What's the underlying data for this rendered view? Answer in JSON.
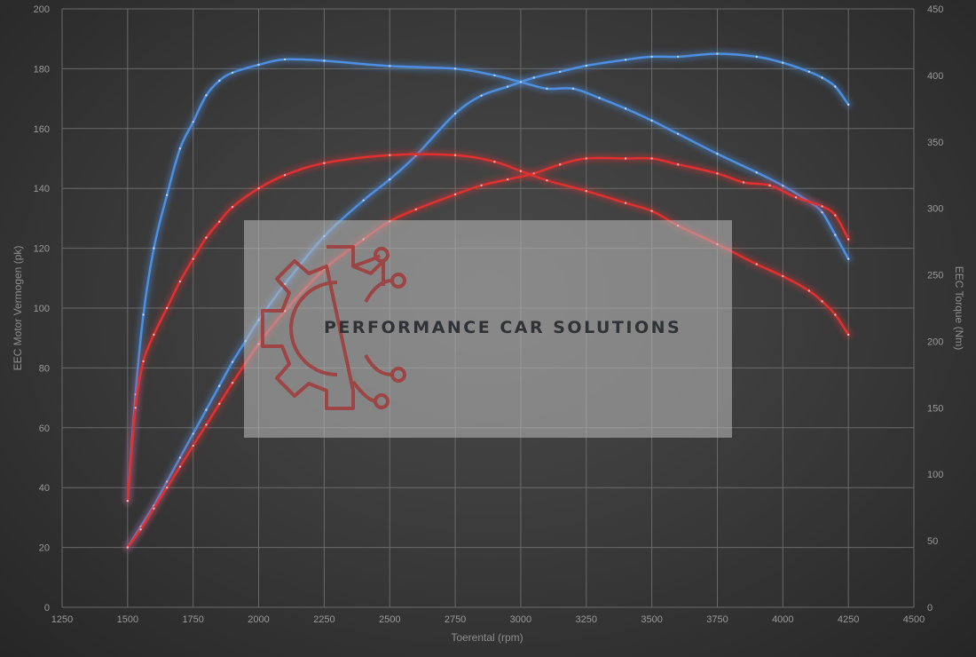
{
  "chart_data": {
    "type": "line",
    "xlabel": "Toerental (rpm)",
    "ylabel": "EEC Motor Vermogen (pk)",
    "y2label": "EEC Torque (Nm)",
    "xlim": [
      1250,
      4500
    ],
    "ylim": [
      0,
      200
    ],
    "y2lim": [
      0,
      450
    ],
    "x_ticks": [
      1250,
      1500,
      1750,
      2000,
      2250,
      2500,
      2750,
      3000,
      3250,
      3500,
      3750,
      4000,
      4250,
      4500
    ],
    "y_ticks": [
      0,
      20,
      40,
      60,
      80,
      100,
      120,
      140,
      160,
      180,
      200
    ],
    "y2_ticks": [
      0,
      50,
      100,
      150,
      200,
      250,
      300,
      350,
      400,
      450
    ],
    "grid": true,
    "series": [
      {
        "name": "",
        "quantity": "power",
        "axis": "left",
        "color": "#4d8fe0",
        "x": [
          1500,
          1550,
          1600,
          1650,
          1700,
          1750,
          1800,
          1850,
          1900,
          1950,
          2000,
          2100,
          2250,
          2400,
          2500,
          2600,
          2750,
          2850,
          2950,
          3050,
          3150,
          3250,
          3400,
          3500,
          3600,
          3750,
          3900,
          4000,
          4100,
          4150,
          4200,
          4250
        ],
        "y": [
          20,
          27,
          34,
          42,
          50,
          58,
          66,
          74,
          82,
          89,
          96,
          108,
          124,
          136,
          143,
          151,
          165,
          171,
          174,
          177,
          179,
          181,
          183,
          184,
          184,
          185,
          184,
          182,
          179,
          177,
          174,
          168
        ]
      },
      {
        "name": "",
        "quantity": "torque",
        "axis": "right",
        "color": "#4d8fe0",
        "x": [
          1500,
          1530,
          1560,
          1600,
          1650,
          1700,
          1750,
          1800,
          1850,
          1900,
          2000,
          2100,
          2250,
          2500,
          2750,
          2900,
          3000,
          3100,
          3200,
          3300,
          3400,
          3500,
          3600,
          3750,
          3900,
          4000,
          4100,
          4150,
          4200,
          4250
        ],
        "y": [
          80,
          160,
          220,
          270,
          310,
          345,
          365,
          385,
          396,
          402,
          408,
          412,
          411,
          407,
          405,
          400,
          395,
          390,
          390,
          383,
          375,
          366,
          356,
          341,
          327,
          317,
          305,
          297,
          280,
          262
        ]
      },
      {
        "name": "",
        "quantity": "power",
        "axis": "left",
        "color": "#e03030",
        "x": [
          1500,
          1550,
          1600,
          1650,
          1700,
          1750,
          1800,
          1850,
          1900,
          2000,
          2100,
          2250,
          2400,
          2500,
          2600,
          2750,
          2850,
          2950,
          3050,
          3150,
          3250,
          3400,
          3500,
          3600,
          3750,
          3850,
          3950,
          4050,
          4150,
          4200,
          4250
        ],
        "y": [
          20,
          26,
          33,
          40,
          47,
          54,
          61,
          68,
          75,
          88,
          99,
          113,
          123,
          129,
          133,
          138,
          141,
          143,
          145,
          148,
          150,
          150,
          150,
          148,
          145,
          142,
          141,
          137,
          134,
          131,
          123
        ]
      },
      {
        "name": "",
        "quantity": "torque",
        "axis": "right",
        "color": "#e03030",
        "x": [
          1500,
          1530,
          1560,
          1600,
          1650,
          1700,
          1750,
          1800,
          1850,
          1900,
          2000,
          2100,
          2250,
          2500,
          2750,
          2900,
          3000,
          3100,
          3250,
          3400,
          3500,
          3600,
          3750,
          3900,
          4000,
          4100,
          4150,
          4200,
          4250
        ],
        "y": [
          80,
          150,
          185,
          205,
          225,
          245,
          262,
          278,
          290,
          301,
          315,
          325,
          334,
          340,
          340,
          335,
          328,
          321,
          313,
          304,
          298,
          287,
          273,
          258,
          249,
          238,
          230,
          220,
          205
        ]
      }
    ]
  },
  "watermark": {
    "text": "PERFORMANCE CAR SOLUTIONS",
    "icon": "gear-circuit-logo-icon"
  }
}
